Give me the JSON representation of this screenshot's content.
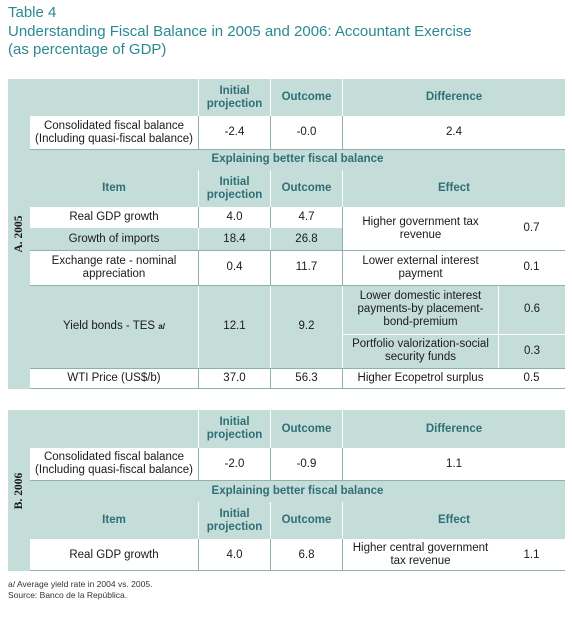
{
  "title": {
    "line1": "Table 4",
    "line2": "Understanding Fiscal Balance in 2005 and 2006: Accountant Exercise",
    "line3": "(as percentage of GDP)"
  },
  "headers": {
    "initial_projection": "Initial projection",
    "outcome": "Outcome",
    "difference": "Difference",
    "item": "Item",
    "effect": "Effect",
    "explaining": "Explaining better fiscal balance"
  },
  "section_2005": {
    "label": "A. 2005",
    "consolidated": {
      "label": "Consolidated fiscal balance (Including quasi-fiscal balance)",
      "initial": "-2.4",
      "outcome": "-0.0",
      "difference": "2.4"
    },
    "rows": [
      {
        "item": "Real GDP growth",
        "initial": "4.0",
        "outcome": "4.7"
      },
      {
        "item": "Growth of imports",
        "initial": "18.4",
        "outcome": "26.8"
      },
      {
        "item": "Exchange rate - nominal appreciation",
        "initial": "0.4",
        "outcome": "11.7"
      },
      {
        "item": "Yield bonds - TES",
        "item_sup": "a/",
        "initial": "12.1",
        "outcome": "9.2"
      },
      {
        "item": "WTI Price  (US$/b)",
        "initial": "37.0",
        "outcome": "56.3"
      }
    ],
    "effects": [
      {
        "label": "Higher government tax revenue",
        "value": "0.7"
      },
      {
        "label": "Lower external interest payment",
        "value": "0.1"
      },
      {
        "label": "Lower domestic interest payments-by placement-bond-premium",
        "value": "0.6"
      },
      {
        "label": "Portfolio valorization-social security funds",
        "value": "0.3"
      },
      {
        "label": "Higher Ecopetrol surplus",
        "value": "0.5"
      }
    ]
  },
  "section_2006": {
    "label": "B. 2006",
    "consolidated": {
      "label": "Consolidated fiscal balance (Including quasi-fiscal balance)",
      "initial": "-2.0",
      "outcome": "-0.9",
      "difference": "1.1"
    },
    "rows": [
      {
        "item": "Real GDP growth",
        "initial": "4.0",
        "outcome": "6.8"
      }
    ],
    "effects": [
      {
        "label": "Higher central government tax revenue",
        "value": "1.1"
      }
    ]
  },
  "notes": {
    "footnote": "a/ Average yield rate in 2004 vs. 2005.",
    "source": "Source: Banco de la República."
  },
  "colors": {
    "title": "#2a8a92",
    "header_text": "#2f6f76",
    "band": "#c5ddd8",
    "lines": "#8fb0ab"
  }
}
